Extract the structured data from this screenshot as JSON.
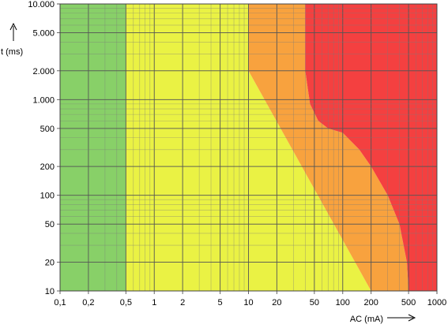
{
  "chart_data": {
    "type": "area",
    "title": "",
    "xlabel": "AC (mA)",
    "ylabel": "t (ms)",
    "x_scale": "log",
    "y_scale": "log",
    "xlim": [
      0.1,
      1000
    ],
    "ylim": [
      10,
      10000
    ],
    "grid": true,
    "x_ticks": [
      0.1,
      0.2,
      0.5,
      1,
      2,
      5,
      10,
      20,
      50,
      100,
      200,
      500,
      1000
    ],
    "x_tick_labels": [
      "0,1",
      "0,2",
      "0,5",
      "1",
      "2",
      "5",
      "10",
      "20",
      "50",
      "100",
      "200",
      "500",
      "1000"
    ],
    "y_ticks": [
      10,
      20,
      50,
      100,
      200,
      500,
      1000,
      2000,
      5000,
      10000
    ],
    "y_tick_labels": [
      "10",
      "20",
      "50",
      "100",
      "200",
      "500",
      "1.000",
      "2.000",
      "5.000",
      "10.000"
    ],
    "zones": [
      {
        "color": "#88d068",
        "points": [
          [
            0.1,
            10
          ],
          [
            0.5,
            10
          ],
          [
            0.5,
            10000
          ],
          [
            0.1,
            10000
          ]
        ]
      },
      {
        "color": "#eaf244",
        "points": [
          [
            0.5,
            10
          ],
          [
            200,
            10
          ],
          [
            10,
            2000
          ],
          [
            10,
            10000
          ],
          [
            0.5,
            10000
          ]
        ]
      },
      {
        "color": "#f8a23e",
        "points": [
          [
            10,
            2000
          ],
          [
            200,
            10
          ],
          [
            500,
            10
          ],
          [
            480,
            20
          ],
          [
            400,
            50
          ],
          [
            300,
            100
          ],
          [
            200,
            200
          ],
          [
            150,
            300
          ],
          [
            100,
            450
          ],
          [
            70,
            500
          ],
          [
            55,
            600
          ],
          [
            45,
            900
          ],
          [
            40,
            2000
          ],
          [
            40,
            10000
          ],
          [
            10,
            10000
          ]
        ]
      },
      {
        "color": "#f44040",
        "points": [
          [
            40,
            2000
          ],
          [
            45,
            900
          ],
          [
            55,
            600
          ],
          [
            70,
            500
          ],
          [
            100,
            450
          ],
          [
            150,
            300
          ],
          [
            200,
            200
          ],
          [
            300,
            100
          ],
          [
            400,
            50
          ],
          [
            480,
            20
          ],
          [
            500,
            10
          ],
          [
            1000,
            10
          ],
          [
            1000,
            10000
          ],
          [
            40,
            10000
          ]
        ]
      }
    ]
  }
}
